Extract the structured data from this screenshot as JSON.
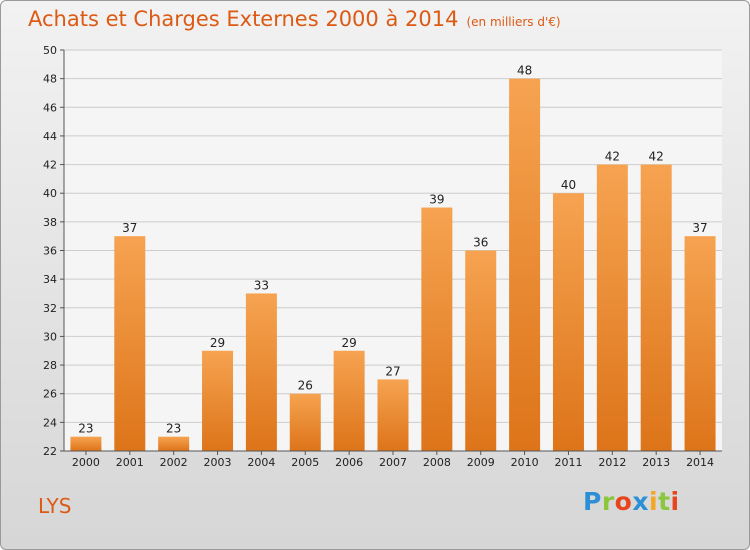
{
  "title": "Achats et Charges Externes 2000 à 2014",
  "unit": "(en milliers d'€)",
  "city": "LYS",
  "logo": {
    "letters": [
      "P",
      "r",
      "o",
      "x",
      "i",
      "t",
      "i"
    ],
    "colors": [
      "#2d8fd5",
      "#8cc63f",
      "#e8451e",
      "#2d8fd5",
      "#f5a623",
      "#8cc63f",
      "#e8451e"
    ]
  },
  "colors": {
    "title": "#dc5a14",
    "bar_top": "#f6a351",
    "bar_bottom": "#dd7419",
    "grid": "#cccccc"
  },
  "chart_data": {
    "type": "bar",
    "categories": [
      "2000",
      "2001",
      "2002",
      "2003",
      "2004",
      "2005",
      "2006",
      "2007",
      "2008",
      "2009",
      "2010",
      "2011",
      "2012",
      "2013",
      "2014"
    ],
    "values": [
      23,
      37,
      23,
      29,
      33,
      26,
      29,
      27,
      39,
      36,
      48,
      40,
      42,
      42,
      37
    ],
    "ylim": [
      22,
      50
    ],
    "yticks": [
      22,
      24,
      26,
      28,
      30,
      32,
      34,
      36,
      38,
      40,
      42,
      44,
      46,
      48,
      50
    ],
    "grid": true,
    "title": "Achats et Charges Externes 2000 à 2014"
  }
}
